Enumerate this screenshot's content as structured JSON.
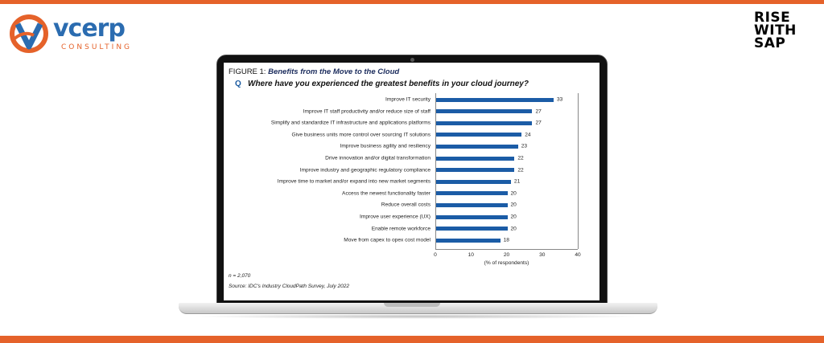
{
  "logo": {
    "word": "vcerp",
    "sub": "CONSULTING"
  },
  "rise_lines": [
    "RISE",
    "WITH",
    "SAP"
  ],
  "colors": {
    "accent": "#e5622a",
    "bar": "#1b5ca6",
    "brand_blue": "#2b6cb0"
  },
  "figure": {
    "prefix": "FIGURE 1:",
    "title": "Benefits from the Move to the Cloud",
    "q_mark": "Q",
    "question": "Where have you experienced the greatest benefits in your cloud journey?",
    "n_note": "n = 2,070",
    "source": "Source: IDC's Industry CloudPath Survey, July 2022"
  },
  "chart_data": {
    "type": "bar",
    "orientation": "horizontal",
    "categories": [
      "Improve IT security",
      "Improve IT staff productivity and/or reduce size of staff",
      "Simplify and standardize IT infrastructure and applications platforms",
      "Give business units more control over sourcing IT solutions",
      "Improve business agility and resiliency",
      "Drive innovation and/or digital transformation",
      "Improve industry and geographic regulatory compliance",
      "Improve time to market and/or expand into new market segments",
      "Access the newest functionality faster",
      "Reduce overall costs",
      "Improve user experience (UX)",
      "Enable remote workforce",
      "Move from capex to opex cost model"
    ],
    "values": [
      33,
      27,
      27,
      24,
      23,
      22,
      22,
      21,
      20,
      20,
      20,
      20,
      18
    ],
    "xlim": [
      0,
      40
    ],
    "xticks": [
      0,
      10,
      20,
      30,
      40
    ],
    "xlabel": "(% of respondents)",
    "grid": false,
    "data_labels": true
  }
}
